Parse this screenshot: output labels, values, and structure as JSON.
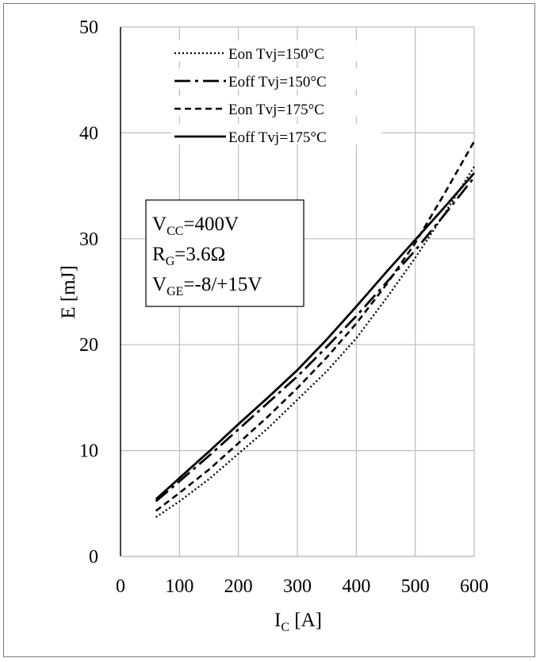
{
  "chart_data": {
    "type": "line",
    "xlabel": {
      "main": "I",
      "sub": "C",
      "rest": " [A]"
    },
    "ylabel": "E [mJ]",
    "xlim": [
      0,
      600
    ],
    "ylim": [
      0,
      50
    ],
    "x_ticks": [
      "0",
      "100",
      "200",
      "300",
      "400",
      "500",
      "600"
    ],
    "y_ticks": [
      "0",
      "10",
      "20",
      "30",
      "40",
      "50"
    ],
    "grid": true,
    "legend_position": "top-center",
    "annotation": [
      {
        "main": "V",
        "sub": "CC",
        "rest": "=400V"
      },
      {
        "main": "R",
        "sub": "G",
        "rest": "=3.6Ω"
      },
      {
        "main": "V",
        "sub": "GE",
        "rest": "=-8/+15V"
      }
    ],
    "x": [
      60,
      100,
      150,
      200,
      250,
      300,
      350,
      400,
      450,
      500,
      550,
      600
    ],
    "series": [
      {
        "name": "Eon Tvj=150°C",
        "style": "dotted",
        "values": [
          3.7,
          5.2,
          7.3,
          9.7,
          12.1,
          14.8,
          17.5,
          20.6,
          24.3,
          28.2,
          32.4,
          36.8
        ]
      },
      {
        "name": "Eoff Tvj=150°C",
        "style": "dashdot",
        "values": [
          5.2,
          7.1,
          9.5,
          12.0,
          14.5,
          17.0,
          19.8,
          22.7,
          25.8,
          28.9,
          32.3,
          35.8
        ]
      },
      {
        "name": "Eon Tvj=175°C",
        "style": "dashed",
        "values": [
          4.3,
          6.0,
          8.2,
          10.7,
          13.2,
          15.9,
          18.8,
          22.0,
          25.6,
          29.6,
          34.3,
          39.2
        ]
      },
      {
        "name": "Eoff Tvj=175°C",
        "style": "solid",
        "values": [
          5.4,
          7.4,
          9.9,
          12.5,
          15.0,
          17.6,
          20.5,
          23.6,
          26.8,
          29.9,
          33.0,
          36.2
        ]
      }
    ]
  }
}
